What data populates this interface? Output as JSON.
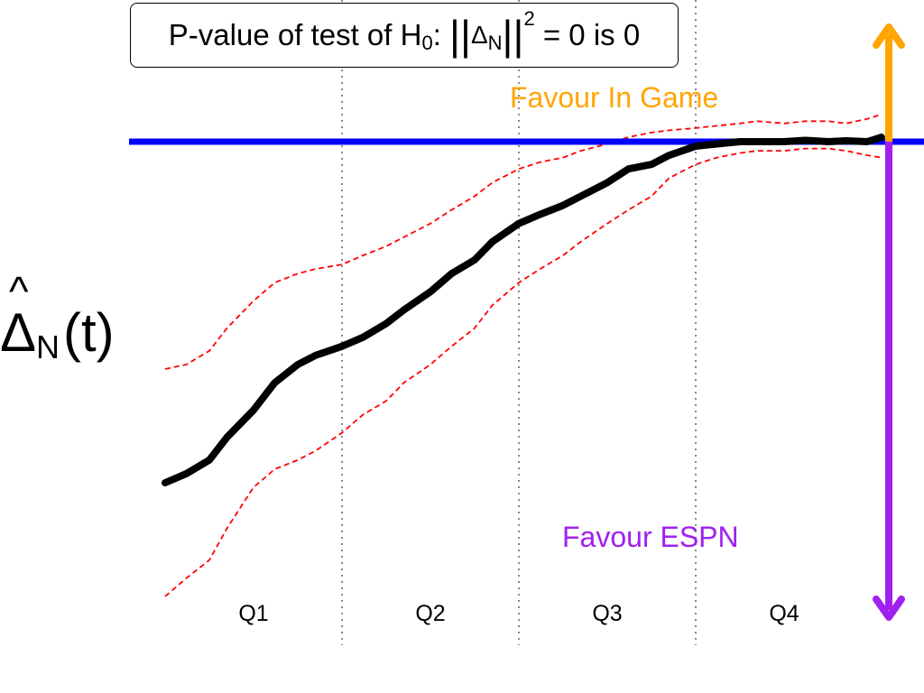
{
  "chart_data": {
    "type": "line",
    "title_parts": {
      "prefix": "P-value of test of H",
      "h_sub": "0",
      "colon": ":",
      "bars_left": "||",
      "delta": "Δ",
      "delta_sub": "N",
      "bars_right": "||",
      "sq": "2",
      "suffix": "= 0 is 0"
    },
    "ylabel": {
      "hat": "^",
      "delta": "Δ",
      "sub": "N",
      "arg": "(t)"
    },
    "quarters": [
      "Q1",
      "Q2",
      "Q3",
      "Q4"
    ],
    "x_range": [
      0,
      4
    ],
    "y_range": [
      -0.75,
      0.25
    ],
    "zero_line": 0,
    "x": [
      0,
      0.12,
      0.25,
      0.35,
      0.5,
      0.62,
      0.75,
      0.85,
      1.0,
      1.12,
      1.25,
      1.35,
      1.5,
      1.62,
      1.75,
      1.85,
      2.0,
      2.12,
      2.25,
      2.35,
      2.5,
      2.62,
      2.75,
      2.85,
      3.0,
      3.12,
      3.25,
      3.35,
      3.5,
      3.62,
      3.75,
      3.85,
      3.97,
      4.05
    ],
    "estimate": [
      -0.75,
      -0.73,
      -0.7,
      -0.65,
      -0.59,
      -0.53,
      -0.49,
      -0.47,
      -0.45,
      -0.43,
      -0.4,
      -0.37,
      -0.33,
      -0.29,
      -0.26,
      -0.22,
      -0.18,
      -0.16,
      -0.14,
      -0.12,
      -0.09,
      -0.06,
      -0.05,
      -0.03,
      -0.01,
      -0.005,
      0.0,
      0.0,
      0.0,
      0.003,
      0.0,
      0.002,
      0.0,
      0.01
    ],
    "upper_band": [
      -0.5,
      -0.49,
      -0.46,
      -0.41,
      -0.35,
      -0.31,
      -0.29,
      -0.28,
      -0.27,
      -0.25,
      -0.23,
      -0.21,
      -0.18,
      -0.15,
      -0.12,
      -0.09,
      -0.06,
      -0.045,
      -0.035,
      -0.02,
      -0.005,
      0.01,
      0.02,
      0.025,
      0.03,
      0.035,
      0.04,
      0.045,
      0.04,
      0.045,
      0.045,
      0.04,
      0.05,
      0.06
    ],
    "lower_band": [
      -1.0,
      -0.96,
      -0.92,
      -0.85,
      -0.76,
      -0.72,
      -0.7,
      -0.68,
      -0.64,
      -0.6,
      -0.57,
      -0.53,
      -0.49,
      -0.45,
      -0.41,
      -0.36,
      -0.31,
      -0.28,
      -0.25,
      -0.22,
      -0.18,
      -0.15,
      -0.12,
      -0.08,
      -0.05,
      -0.035,
      -0.025,
      -0.02,
      -0.02,
      -0.015,
      -0.015,
      -0.02,
      -0.03,
      -0.035
    ],
    "annotations": {
      "favour_in_game": "Favour In Game",
      "favour_espn": "Favour ESPN"
    },
    "colors": {
      "estimate": "#000000",
      "band": "#ff0000",
      "zero_line": "#0000ff",
      "in_game": "#ffa500",
      "espn": "#a020f0",
      "quarter_divider": "#888888"
    }
  }
}
